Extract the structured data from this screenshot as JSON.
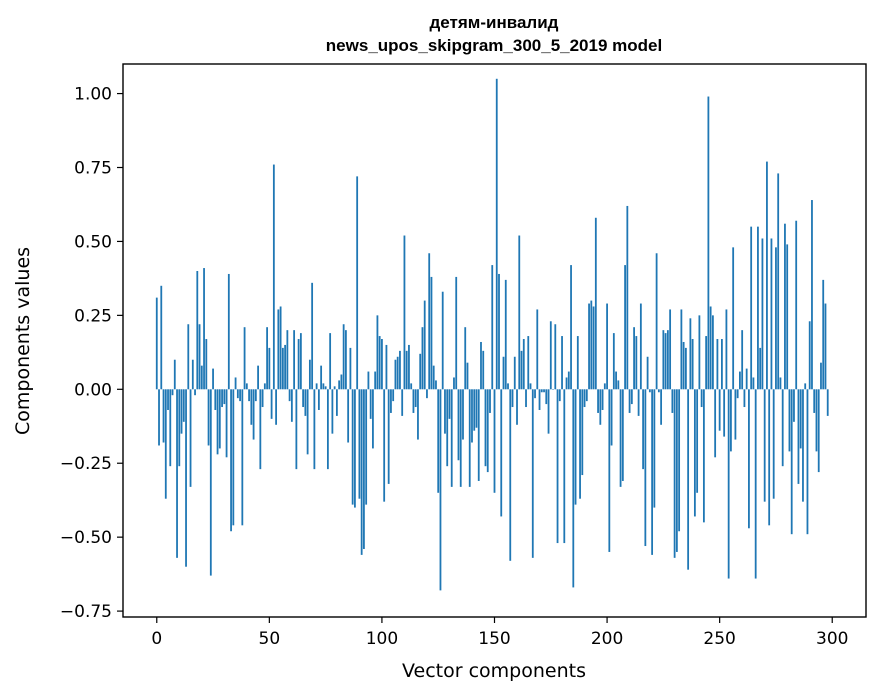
{
  "chart_data": {
    "type": "bar",
    "title": "детям-инвалид",
    "subtitle": "news_upos_skipgram_300_5_2019 model",
    "xlabel": "Vector components",
    "ylabel": "Components values",
    "xlim": [
      -15,
      315
    ],
    "ylim": [
      -0.77,
      1.1
    ],
    "xticks": [
      0,
      50,
      100,
      150,
      200,
      250,
      300
    ],
    "xtick_labels": [
      "0",
      "50",
      "100",
      "150",
      "200",
      "250",
      "300"
    ],
    "yticks": [
      1.0,
      0.75,
      0.5,
      0.25,
      0.0,
      -0.25,
      -0.5,
      -0.75
    ],
    "ytick_labels": [
      "1.00",
      "0.75",
      "0.50",
      "0.25",
      "0.00",
      "−0.25",
      "−0.50",
      "−0.75"
    ],
    "bar_color": "#1f77b4",
    "grid": false,
    "values": [
      0.31,
      -0.19,
      0.35,
      -0.18,
      -0.37,
      -0.07,
      -0.26,
      -0.02,
      0.1,
      -0.57,
      -0.26,
      -0.15,
      -0.11,
      -0.6,
      0.22,
      -0.33,
      0.1,
      -0.02,
      0.4,
      0.22,
      0.08,
      0.41,
      0.17,
      -0.19,
      -0.63,
      0.07,
      -0.07,
      -0.22,
      -0.2,
      -0.06,
      -0.05,
      -0.23,
      0.39,
      -0.48,
      -0.46,
      0.04,
      -0.03,
      -0.04,
      -0.46,
      0.21,
      0.02,
      -0.04,
      -0.12,
      -0.17,
      -0.04,
      0.08,
      -0.27,
      -0.06,
      0.02,
      0.21,
      0.14,
      -0.1,
      0.76,
      -0.12,
      0.27,
      0.28,
      0.14,
      0.15,
      0.2,
      -0.04,
      -0.11,
      0.2,
      -0.27,
      0.17,
      0.19,
      -0.06,
      -0.09,
      -0.22,
      0.1,
      0.36,
      -0.27,
      0.02,
      -0.07,
      0.08,
      0.02,
      0.01,
      -0.27,
      0.19,
      -0.15,
      0.01,
      -0.09,
      0.03,
      0.05,
      0.22,
      0.2,
      -0.18,
      0.14,
      -0.39,
      -0.4,
      0.72,
      -0.37,
      -0.56,
      -0.54,
      -0.39,
      0.06,
      -0.1,
      -0.2,
      0.06,
      0.25,
      0.18,
      0.17,
      -0.38,
      0.15,
      -0.32,
      -0.08,
      -0.04,
      0.1,
      0.11,
      0.13,
      -0.09,
      0.52,
      0.13,
      0.15,
      0.02,
      -0.08,
      -0.06,
      -0.17,
      0.12,
      0.21,
      0.3,
      -0.03,
      0.46,
      0.38,
      0.08,
      0.03,
      -0.35,
      -0.68,
      0.33,
      -0.15,
      -0.26,
      -0.1,
      -0.33,
      0.04,
      0.38,
      -0.24,
      -0.33,
      -0.17,
      0.21,
      0.09,
      -0.33,
      -0.18,
      -0.14,
      -0.13,
      -0.31,
      0.16,
      0.13,
      -0.26,
      -0.28,
      -0.08,
      0.42,
      -0.35,
      1.05,
      0.39,
      -0.43,
      0.11,
      0.37,
      0.02,
      -0.58,
      -0.06,
      0.11,
      -0.12,
      0.52,
      0.13,
      0.17,
      -0.06,
      0.18,
      0.02,
      -0.57,
      -0.03,
      0.27,
      -0.07,
      -0.01,
      -0.01,
      -0.05,
      -0.15,
      0.23,
      0.0,
      0.22,
      -0.52,
      -0.04,
      0.18,
      -0.52,
      0.04,
      0.06,
      0.42,
      -0.67,
      -0.39,
      0.18,
      -0.37,
      -0.29,
      -0.06,
      -0.04,
      0.29,
      0.3,
      0.28,
      0.58,
      -0.08,
      -0.12,
      -0.07,
      0.02,
      0.29,
      -0.55,
      -0.19,
      0.19,
      0.06,
      0.03,
      -0.33,
      -0.31,
      0.42,
      0.62,
      -0.08,
      -0.05,
      0.21,
      0.18,
      -0.09,
      0.29,
      -0.27,
      -0.53,
      0.11,
      -0.01,
      -0.56,
      -0.4,
      0.46,
      -0.01,
      -0.12,
      0.2,
      0.19,
      0.2,
      0.27,
      -0.08,
      -0.57,
      -0.55,
      -0.48,
      0.27,
      0.16,
      0.14,
      -0.61,
      0.24,
      0.17,
      -0.43,
      -0.35,
      0.25,
      -0.06,
      -0.45,
      0.18,
      0.99,
      0.28,
      0.25,
      -0.23,
      0.17,
      -0.14,
      0.17,
      -0.16,
      0.27,
      -0.64,
      -0.21,
      0.48,
      -0.17,
      -0.03,
      0.06,
      0.2,
      -0.06,
      0.07,
      -0.47,
      0.55,
      0.04,
      -0.64,
      0.55,
      0.14,
      0.51,
      -0.38,
      0.77,
      -0.46,
      0.51,
      -0.37,
      0.48,
      0.73,
      0.04,
      -0.26,
      0.56,
      0.49,
      -0.21,
      -0.49,
      -0.11,
      0.57,
      -0.32,
      -0.2,
      -0.38,
      0.02,
      -0.49,
      0.23,
      0.64,
      -0.08,
      -0.21,
      -0.28,
      0.09,
      0.37,
      0.29,
      -0.09
    ]
  }
}
